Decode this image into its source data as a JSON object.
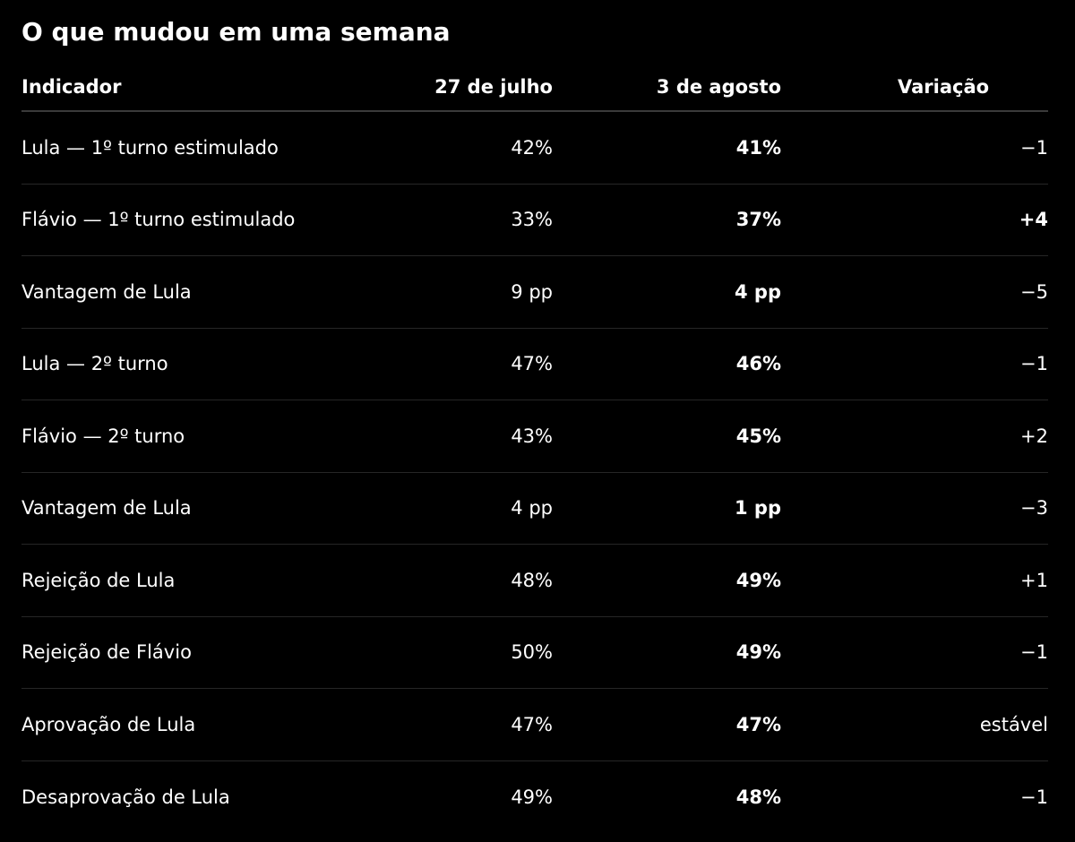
{
  "title": "O que mudou em uma semana",
  "headers": {
    "indicator": "Indicador",
    "col1": "27 de julho",
    "col2": "3 de agosto",
    "change": "Variação"
  },
  "rows": [
    {
      "indicator": "Lula — 1º turno estimulado",
      "jul27": "42%",
      "aug3": "41%",
      "change": "−1",
      "change_bold": false
    },
    {
      "indicator": "Flávio — 1º turno estimulado",
      "jul27": "33%",
      "aug3": "37%",
      "change": "+4",
      "change_bold": true
    },
    {
      "indicator": "Vantagem de Lula",
      "jul27": "9 pp",
      "aug3": "4 pp",
      "change": "−5",
      "change_bold": false
    },
    {
      "indicator": "Lula — 2º turno",
      "jul27": "47%",
      "aug3": "46%",
      "change": "−1",
      "change_bold": false
    },
    {
      "indicator": "Flávio — 2º turno",
      "jul27": "43%",
      "aug3": "45%",
      "change": "+2",
      "change_bold": false
    },
    {
      "indicator": "Vantagem de Lula",
      "jul27": "4 pp",
      "aug3": "1 pp",
      "change": "−3",
      "change_bold": false
    },
    {
      "indicator": "Rejeição de Lula",
      "jul27": "48%",
      "aug3": "49%",
      "change": "+1",
      "change_bold": false
    },
    {
      "indicator": "Rejeição de Flávio",
      "jul27": "50%",
      "aug3": "49%",
      "change": "−1",
      "change_bold": false
    },
    {
      "indicator": "Aprovação de Lula",
      "jul27": "47%",
      "aug3": "47%",
      "change": "estável",
      "change_bold": false
    },
    {
      "indicator": "Desaprovação de Lula",
      "jul27": "49%",
      "aug3": "48%",
      "change": "−1",
      "change_bold": false
    }
  ],
  "colors": {
    "background": "#000000",
    "text": "#ffffff",
    "divider": "#262626"
  }
}
